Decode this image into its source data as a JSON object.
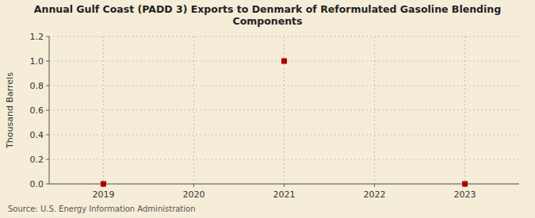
{
  "chart_data": {
    "type": "scatter",
    "title": "Annual Gulf Coast (PADD 3) Exports to Denmark of Reformulated Gasoline Blending\nComponents",
    "ylabel": "Thousand Barrels",
    "source": "Source: U.S. Energy Information Administration",
    "x": [
      2019,
      2021,
      2023
    ],
    "values": [
      0.0,
      1.0,
      0.0
    ],
    "color": "#aa0000",
    "marker": "square",
    "xlim": [
      2018.4,
      2023.6
    ],
    "ylim": [
      0.0,
      1.2
    ],
    "xticks": [
      2019,
      2020,
      2021,
      2022,
      2023
    ],
    "yticks": [
      {
        "value": 0.0,
        "label": "0.0"
      },
      0.2,
      0.4,
      0.6,
      0.8,
      {
        "value": 1.0,
        "label": "1.0"
      },
      1.2
    ],
    "grid": true
  }
}
